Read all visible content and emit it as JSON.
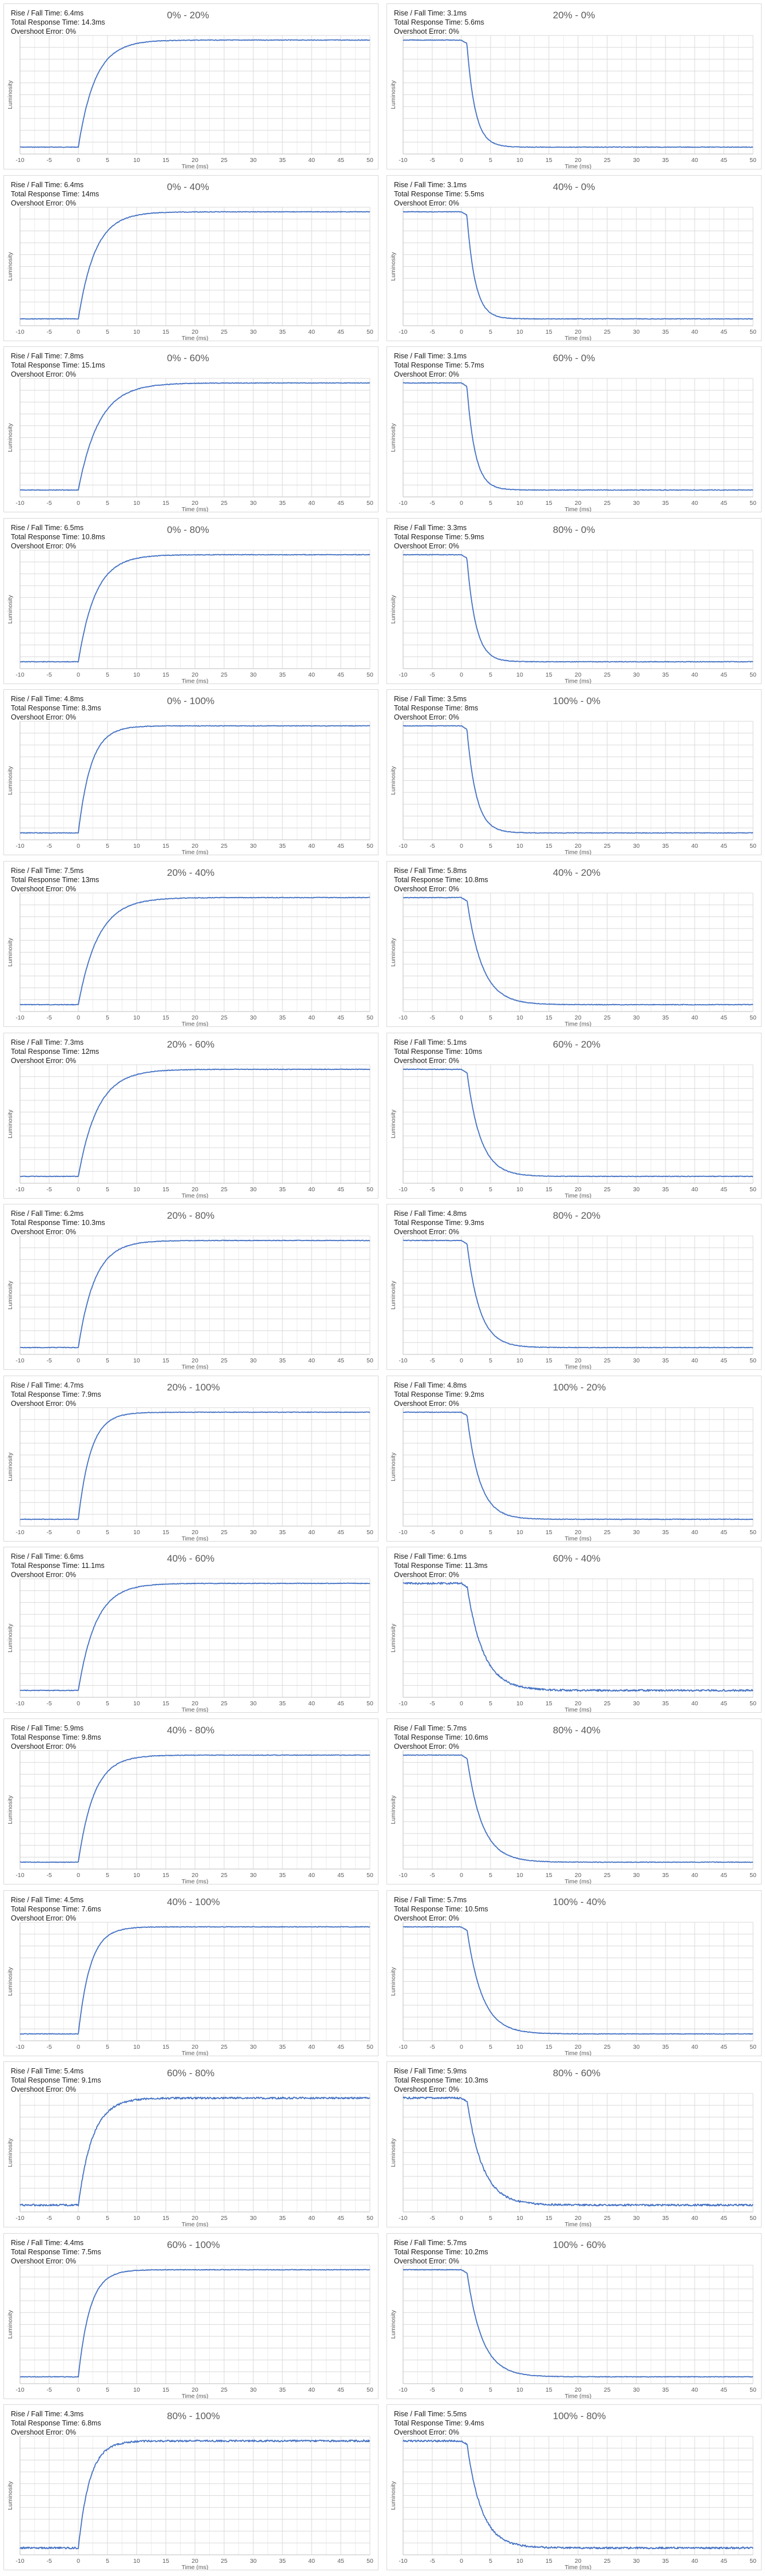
{
  "labels": {
    "rise_fall_prefix": "Rise / Fall Time: ",
    "total_prefix": "Total Response Time: ",
    "overshoot_prefix": "Overshoot Error: ",
    "xlabel": "Time (ms)",
    "ylabel": "Luminosity"
  },
  "colors": {
    "line": "#4472c4",
    "grid": "#d9d9d9",
    "axis_text": "#595959",
    "border": "#d9d9d9"
  },
  "chart_data": [
    {
      "type": "line",
      "title": "0% - 20%",
      "direction": "rise",
      "rise_fall": "6.4ms",
      "total": "14.3ms",
      "overshoot": "0%",
      "from": 0,
      "to": 20
    },
    {
      "type": "line",
      "title": "20% - 0%",
      "direction": "fall",
      "rise_fall": "3.1ms",
      "total": "5.6ms",
      "overshoot": "0%",
      "from": 20,
      "to": 0
    },
    {
      "type": "line",
      "title": "0% - 40%",
      "direction": "rise",
      "rise_fall": "6.4ms",
      "total": "14ms",
      "overshoot": "0%",
      "from": 0,
      "to": 40
    },
    {
      "type": "line",
      "title": "40% - 0%",
      "direction": "fall",
      "rise_fall": "3.1ms",
      "total": "5.5ms",
      "overshoot": "0%",
      "from": 40,
      "to": 0
    },
    {
      "type": "line",
      "title": "0% - 60%",
      "direction": "rise",
      "rise_fall": "7.8ms",
      "total": "15.1ms",
      "overshoot": "0%",
      "from": 0,
      "to": 60
    },
    {
      "type": "line",
      "title": "60% - 0%",
      "direction": "fall",
      "rise_fall": "3.1ms",
      "total": "5.7ms",
      "overshoot": "0%",
      "from": 60,
      "to": 0
    },
    {
      "type": "line",
      "title": "0% - 80%",
      "direction": "rise",
      "rise_fall": "6.5ms",
      "total": "10.8ms",
      "overshoot": "0%",
      "from": 0,
      "to": 80
    },
    {
      "type": "line",
      "title": "80% - 0%",
      "direction": "fall",
      "rise_fall": "3.3ms",
      "total": "5.9ms",
      "overshoot": "0%",
      "from": 80,
      "to": 0
    },
    {
      "type": "line",
      "title": "0% - 100%",
      "direction": "rise",
      "rise_fall": "4.8ms",
      "total": "8.3ms",
      "overshoot": "0%",
      "from": 0,
      "to": 100
    },
    {
      "type": "line",
      "title": "100% - 0%",
      "direction": "fall",
      "rise_fall": "3.5ms",
      "total": "8ms",
      "overshoot": "0%",
      "from": 100,
      "to": 0
    },
    {
      "type": "line",
      "title": "20% - 40%",
      "direction": "rise",
      "rise_fall": "7.5ms",
      "total": "13ms",
      "overshoot": "0%",
      "from": 20,
      "to": 40
    },
    {
      "type": "line",
      "title": "40% - 20%",
      "direction": "fall",
      "rise_fall": "5.8ms",
      "total": "10.8ms",
      "overshoot": "0%",
      "from": 40,
      "to": 20
    },
    {
      "type": "line",
      "title": "20% - 60%",
      "direction": "rise",
      "rise_fall": "7.3ms",
      "total": "12ms",
      "overshoot": "0%",
      "from": 20,
      "to": 60
    },
    {
      "type": "line",
      "title": "60% - 20%",
      "direction": "fall",
      "rise_fall": "5.1ms",
      "total": "10ms",
      "overshoot": "0%",
      "from": 60,
      "to": 20
    },
    {
      "type": "line",
      "title": "20% - 80%",
      "direction": "rise",
      "rise_fall": "6.2ms",
      "total": "10.3ms",
      "overshoot": "0%",
      "from": 20,
      "to": 80
    },
    {
      "type": "line",
      "title": "80% - 20%",
      "direction": "fall",
      "rise_fall": "4.8ms",
      "total": "9.3ms",
      "overshoot": "0%",
      "from": 80,
      "to": 20
    },
    {
      "type": "line",
      "title": "20% - 100%",
      "direction": "rise",
      "rise_fall": "4.7ms",
      "total": "7.9ms",
      "overshoot": "0%",
      "from": 20,
      "to": 100
    },
    {
      "type": "line",
      "title": "100% - 20%",
      "direction": "fall",
      "rise_fall": "4.8ms",
      "total": "9.2ms",
      "overshoot": "0%",
      "from": 100,
      "to": 20
    },
    {
      "type": "line",
      "title": "40% - 60%",
      "direction": "rise",
      "rise_fall": "6.6ms",
      "total": "11.1ms",
      "overshoot": "0%",
      "from": 40,
      "to": 60
    },
    {
      "type": "line",
      "title": "60% - 40%",
      "direction": "fall",
      "rise_fall": "6.1ms",
      "total": "11.3ms",
      "overshoot": "0%",
      "from": 60,
      "to": 40
    },
    {
      "type": "line",
      "title": "40% - 80%",
      "direction": "rise",
      "rise_fall": "5.9ms",
      "total": "9.8ms",
      "overshoot": "0%",
      "from": 40,
      "to": 80
    },
    {
      "type": "line",
      "title": "80% - 40%",
      "direction": "fall",
      "rise_fall": "5.7ms",
      "total": "10.6ms",
      "overshoot": "0%",
      "from": 80,
      "to": 40
    },
    {
      "type": "line",
      "title": "40% - 100%",
      "direction": "rise",
      "rise_fall": "4.5ms",
      "total": "7.6ms",
      "overshoot": "0%",
      "from": 40,
      "to": 100
    },
    {
      "type": "line",
      "title": "100% - 40%",
      "direction": "fall",
      "rise_fall": "5.7ms",
      "total": "10.5ms",
      "overshoot": "0%",
      "from": 100,
      "to": 40
    },
    {
      "type": "line",
      "title": "60% - 80%",
      "direction": "rise",
      "rise_fall": "5.4ms",
      "total": "9.1ms",
      "overshoot": "0%",
      "from": 60,
      "to": 80
    },
    {
      "type": "line",
      "title": "80% - 60%",
      "direction": "fall",
      "rise_fall": "5.9ms",
      "total": "10.3ms",
      "overshoot": "0%",
      "from": 80,
      "to": 60
    },
    {
      "type": "line",
      "title": "60% - 100%",
      "direction": "rise",
      "rise_fall": "4.4ms",
      "total": "7.5ms",
      "overshoot": "0%",
      "from": 60,
      "to": 100
    },
    {
      "type": "line",
      "title": "100% - 60%",
      "direction": "fall",
      "rise_fall": "5.7ms",
      "total": "10.2ms",
      "overshoot": "0%",
      "from": 100,
      "to": 60
    },
    {
      "type": "line",
      "title": "80% - 100%",
      "direction": "rise",
      "rise_fall": "4.3ms",
      "total": "6.8ms",
      "overshoot": "0%",
      "from": 80,
      "to": 100
    },
    {
      "type": "line",
      "title": "100% - 80%",
      "direction": "fall",
      "rise_fall": "5.5ms",
      "total": "9.4ms",
      "overshoot": "0%",
      "from": 100,
      "to": 80
    }
  ],
  "axes": {
    "x_ticks": [
      -10,
      -5,
      0,
      5,
      10,
      15,
      20,
      25,
      30,
      35,
      40,
      45,
      50
    ],
    "xlim": [
      -10,
      50
    ],
    "xlabel": "Time (ms)",
    "ylabel": "Luminosity",
    "grid": true,
    "y_tick_labels": false
  }
}
